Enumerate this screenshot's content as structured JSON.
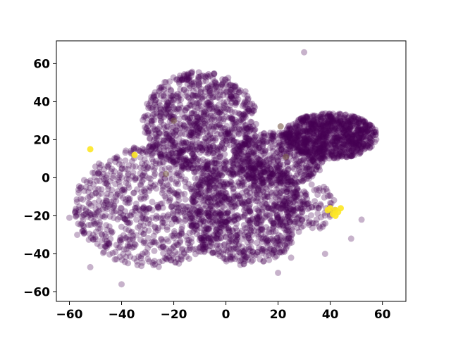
{
  "chart_data": {
    "type": "scatter",
    "title": "",
    "xlabel": "",
    "ylabel": "",
    "xlim": [
      -65,
      69
    ],
    "ylim": [
      -65,
      72
    ],
    "xticks": [
      -60,
      -40,
      -20,
      0,
      20,
      40,
      60
    ],
    "yticks": [
      -60,
      -40,
      -20,
      0,
      20,
      40,
      60
    ],
    "grid": false,
    "legend": "none",
    "colors": {
      "background_points": "#440154",
      "mid_points": "#7a5a4a",
      "highlight_points": "#fde725"
    },
    "series": [
      {
        "color": "#440154",
        "alpha": 0.3,
        "regions": [
          {
            "cx": -10,
            "cy": 30,
            "rx": 22,
            "ry": 26,
            "density": "high"
          },
          {
            "cx": -28,
            "cy": -15,
            "rx": 30,
            "ry": 32,
            "density": "high"
          },
          {
            "cx": 8,
            "cy": -18,
            "rx": 22,
            "ry": 28,
            "density": "high"
          },
          {
            "cx": 40,
            "cy": 22,
            "rx": 18,
            "ry": 12,
            "density": "high"
          },
          {
            "cx": 20,
            "cy": 10,
            "rx": 18,
            "ry": 14,
            "density": "medium"
          },
          {
            "cx": 30,
            "cy": -15,
            "rx": 12,
            "ry": 14,
            "density": "low"
          }
        ],
        "outliers": [
          [
            30,
            66
          ],
          [
            -60,
            -21
          ],
          [
            -57,
            -30
          ],
          [
            -52,
            -47
          ],
          [
            52,
            -22
          ],
          [
            48,
            -32
          ],
          [
            38,
            -40
          ],
          [
            25,
            -42
          ],
          [
            20,
            -50
          ],
          [
            -40,
            -56
          ]
        ]
      },
      {
        "color": "#7a5a4a",
        "alpha": 0.6,
        "points": [
          [
            -20,
            30
          ],
          [
            21,
            27
          ],
          [
            23,
            11
          ],
          [
            -23,
            2
          ]
        ]
      },
      {
        "color": "#fde725",
        "alpha": 0.9,
        "points": [
          [
            -52,
            15
          ],
          [
            -35,
            12
          ],
          [
            40,
            -16
          ],
          [
            42,
            -17
          ],
          [
            43,
            -18
          ],
          [
            41,
            -19
          ],
          [
            39,
            -17
          ],
          [
            44,
            -16
          ],
          [
            42,
            -20
          ]
        ]
      }
    ]
  }
}
